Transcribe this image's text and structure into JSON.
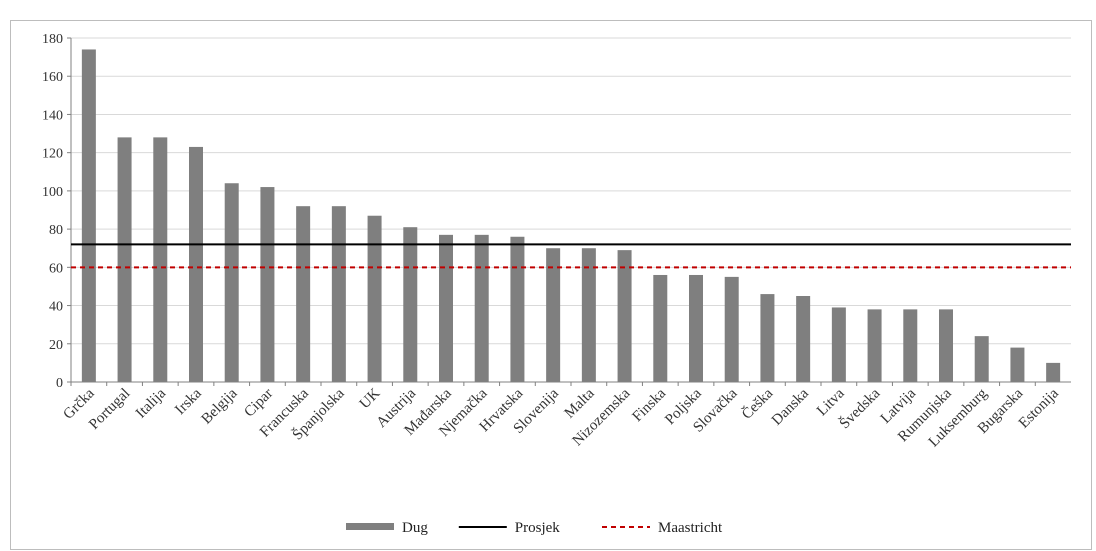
{
  "chart_data": {
    "type": "bar",
    "categories": [
      "Grčka",
      "Portugal",
      "Italija",
      "Irska",
      "Belgija",
      "Cipar",
      "Francuska",
      "Španjolska",
      "UK",
      "Austrija",
      "Mađarska",
      "Njemačka",
      "Hrvatska",
      "Slovenija",
      "Malta",
      "Nizozemska",
      "Finska",
      "Poljska",
      "Slovačka",
      "Češka",
      "Danska",
      "Litva",
      "Švedska",
      "Latvija",
      "Rumunjska",
      "Luksemburg",
      "Bugarska",
      "Estonija"
    ],
    "series": [
      {
        "name": "Dug",
        "type": "bar",
        "color": "#7f7f7f",
        "values": [
          174,
          128,
          128,
          123,
          104,
          102,
          92,
          92,
          87,
          81,
          77,
          77,
          76,
          70,
          70,
          69,
          56,
          56,
          55,
          46,
          45,
          39,
          38,
          38,
          38,
          24,
          18,
          10
        ]
      },
      {
        "name": "Prosjek",
        "type": "line",
        "color": "#000000",
        "value": 72
      },
      {
        "name": "Maastricht",
        "type": "line",
        "style": "dashed",
        "color": "#c00000",
        "value": 60
      }
    ],
    "yticks": [
      0,
      20,
      40,
      60,
      80,
      100,
      120,
      140,
      160,
      180
    ],
    "ylim": [
      0,
      180
    ],
    "grid": true,
    "legend": "bottom"
  }
}
